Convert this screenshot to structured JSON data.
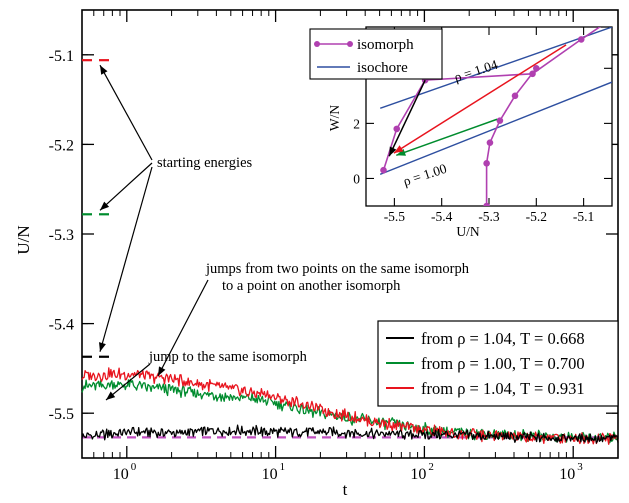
{
  "chart_data": [
    {
      "type": "line",
      "title": "",
      "xlabel": "t",
      "ylabel": "U/N",
      "xscale": "log",
      "xlim": [
        0.5,
        2000
      ],
      "ylim": [
        -5.55,
        -5.05
      ],
      "xticks": [
        {
          "base": "10",
          "exp": "0",
          "value": 1
        },
        {
          "base": "10",
          "exp": "1",
          "value": 10
        },
        {
          "base": "10",
          "exp": "2",
          "value": 100
        },
        {
          "base": "10",
          "exp": "3",
          "value": 1000
        }
      ],
      "yticks": [
        {
          "label": "-5.1",
          "value": -5.1
        },
        {
          "label": "-5.2",
          "value": -5.2
        },
        {
          "label": "-5.3",
          "value": -5.3
        },
        {
          "label": "-5.4",
          "value": -5.4
        },
        {
          "label": "-5.5",
          "value": -5.5
        }
      ],
      "legend_position": "bottom-right",
      "series": [
        {
          "name": "from ρ = 1.04, T = 0.668",
          "color": "#000000",
          "start_energy": -5.437,
          "t": [
            0.5,
            1,
            2,
            5,
            10,
            20,
            50,
            100,
            200,
            500,
            1000,
            2000
          ],
          "values": [
            -5.527,
            -5.521,
            -5.522,
            -5.519,
            -5.521,
            -5.521,
            -5.523,
            -5.524,
            -5.525,
            -5.527,
            -5.528,
            -5.528
          ]
        },
        {
          "name": "from ρ = 1.00, T = 0.700",
          "color": "#008c2e",
          "start_energy": -5.278,
          "t": [
            0.5,
            1,
            2,
            5,
            8,
            15,
            30,
            60,
            100,
            200,
            500,
            1000,
            2000
          ],
          "values": [
            -5.47,
            -5.468,
            -5.474,
            -5.482,
            -5.485,
            -5.496,
            -5.505,
            -5.512,
            -5.518,
            -5.522,
            -5.525,
            -5.527,
            -5.527
          ]
        },
        {
          "name": "from ρ = 1.04, T = 0.931",
          "color": "#e8141e",
          "start_energy": -5.106,
          "t": [
            0.5,
            1,
            2,
            5,
            8,
            15,
            30,
            60,
            100,
            200,
            500,
            1000,
            2000
          ],
          "values": [
            -5.458,
            -5.456,
            -5.462,
            -5.473,
            -5.478,
            -5.49,
            -5.503,
            -5.513,
            -5.519,
            -5.524,
            -5.527,
            -5.527,
            -5.528
          ]
        },
        {
          "name": "",
          "color": "#c050c0",
          "style": "dashed",
          "t": [
            0.5,
            2000
          ],
          "values": [
            -5.527,
            -5.527
          ]
        }
      ],
      "annotations": {
        "starting": "starting energies",
        "jumps_line1": "jumps from two points on the same isomorph",
        "jumps_line2": "to a point on another isomorph",
        "same": "jump to the same isomorph"
      }
    },
    {
      "type": "line",
      "title": "",
      "xlabel": "U/N",
      "ylabel": "W/N",
      "xlim": [
        -5.56,
        -5.04
      ],
      "ylim": [
        -1.0,
        5.5
      ],
      "xticks": [
        {
          "label": "-5.5",
          "value": -5.5
        },
        {
          "label": "-5.4",
          "value": -5.4
        },
        {
          "label": "-5.3",
          "value": -5.3
        },
        {
          "label": "-5.2",
          "value": -5.2
        },
        {
          "label": "-5.1",
          "value": -5.1
        }
      ],
      "yticks": [
        {
          "label": "0",
          "value": 0
        },
        {
          "label": "2",
          "value": 2
        },
        {
          "label": "4",
          "value": 4
        }
      ],
      "legend_position": "top-left",
      "series": [
        {
          "name": "isomorph",
          "color": "#b040b0",
          "marker": "circle",
          "x": [
            -5.523,
            -5.495,
            -5.435,
            -5.208,
            -5.105,
            -5.04
          ],
          "y": [
            0.3,
            1.8,
            3.57,
            3.8,
            5.05,
            5.8
          ]
        },
        {
          "name": "",
          "color": "#b040b0",
          "marker": "circle",
          "x": [
            -5.305,
            -5.305,
            -5.298,
            -5.277,
            -5.245,
            -5.2
          ],
          "y": [
            -1.0,
            0.55,
            1.3,
            2.1,
            3.0,
            4.0
          ]
        },
        {
          "name": "isochore",
          "color": "#2e4fa0",
          "x": [
            -5.53,
            -5.04
          ],
          "y": [
            2.55,
            5.5
          ]
        },
        {
          "name": "",
          "color": "#2e4fa0",
          "x": [
            -5.53,
            -5.04
          ],
          "y": [
            0.15,
            3.5
          ]
        }
      ],
      "arrows": [
        {
          "color": "#000000",
          "from": [
            -5.435,
            3.57
          ],
          "to": [
            -5.511,
            0.81
          ]
        },
        {
          "color": "#008c2e",
          "from": [
            -5.283,
            2.15
          ],
          "to": [
            -5.496,
            0.84
          ]
        },
        {
          "color": "#e8141e",
          "from": [
            -5.137,
            4.85
          ],
          "to": [
            -5.501,
            0.92
          ]
        }
      ],
      "labels": {
        "upper_isochore": "ρ = 1.04",
        "lower_isochore": "ρ = 1.00"
      }
    }
  ]
}
